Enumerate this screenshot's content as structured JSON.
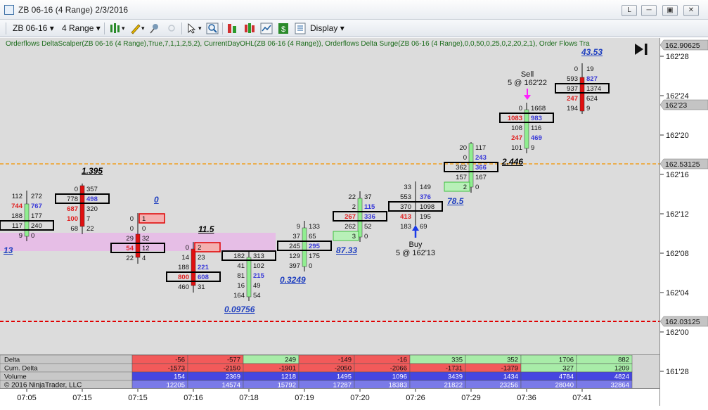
{
  "window": {
    "title": "ZB 06-16 (4 Range)  2/3/2016",
    "buttons": [
      "L",
      "─",
      "▣",
      "✕"
    ]
  },
  "toolbar": {
    "instrument": "ZB 06-16",
    "interval": "4 Range",
    "display_label": "Display"
  },
  "indicator_text": "Orderflows DeltaScalper(ZB 06-16 (4 Range),True,7,1,1,2,5,2), CurrentDayOHL(ZB 06-16 (4 Range)), Orderflows Delta Surge(ZB 06-16 (4 Range),0,0,50,0,25,0,2,20,2,1), Order Flows Tra",
  "price_axis": {
    "ticks": [
      "162'28",
      "162'24",
      "162'20",
      "162'16",
      "162'12",
      "162'08",
      "162'04",
      "162'00",
      "161'28"
    ],
    "markers": [
      {
        "label": "162.90625",
        "style": "gray"
      },
      {
        "label": "162'23",
        "style": "gray"
      },
      {
        "label": "162.53125",
        "style": "gray"
      },
      {
        "label": "162.03125",
        "style": "gray"
      }
    ]
  },
  "time_axis": [
    "07:05",
    "07:15",
    "07:15",
    "07:16",
    "07:18",
    "07:19",
    "07:20",
    "07:26",
    "07:29",
    "07:36",
    "07:41"
  ],
  "trades": {
    "sell_label": "Sell",
    "sell_detail": "5 @ 162'22",
    "buy_label": "Buy",
    "buy_detail": "5 @ 162'13"
  },
  "annotations": [
    {
      "text": "43.53",
      "color": "#1f3fbf"
    },
    {
      "text": "1.395",
      "color": "#000000"
    },
    {
      "text": "0",
      "color": "#1f3fbf"
    },
    {
      "text": "11.5",
      "color": "#000000"
    },
    {
      "text": "13",
      "color": "#1f3fbf"
    },
    {
      "text": "87.33",
      "color": "#1f3fbf"
    },
    {
      "text": "78.5",
      "color": "#1f3fbf"
    },
    {
      "text": "2.446",
      "color": "#000000"
    },
    {
      "text": "0.3249",
      "color": "#1f3fbf"
    },
    {
      "text": "0.09756",
      "color": "#1f3fbf"
    }
  ],
  "footprint": {
    "bars": [
      {
        "rows": [
          [
            "112",
            "272"
          ],
          [
            "744",
            "767"
          ],
          [
            "188",
            "177"
          ],
          [
            "117",
            "240"
          ],
          [
            "9",
            "0"
          ]
        ]
      },
      {
        "rows": [
          [
            "0",
            "357"
          ],
          [
            "778",
            "498"
          ],
          [
            "687",
            "320"
          ],
          [
            "100",
            "7"
          ],
          [
            "68",
            "22"
          ]
        ]
      },
      {
        "rows": [
          [
            "0",
            "1"
          ],
          [
            "0",
            "0"
          ],
          [
            "29",
            "32"
          ],
          [
            "54",
            "12"
          ],
          [
            "22",
            "4"
          ]
        ]
      },
      {
        "rows": [
          [
            "0",
            "2"
          ],
          [
            "14",
            "23"
          ],
          [
            "188",
            "221"
          ],
          [
            "800",
            "608"
          ],
          [
            "460",
            "31"
          ]
        ]
      },
      {
        "rows": [
          [
            "182",
            "313"
          ],
          [
            "41",
            "102"
          ],
          [
            "81",
            "215"
          ],
          [
            "16",
            "49"
          ],
          [
            "164",
            "54"
          ]
        ]
      },
      {
        "rows": [
          [
            "9",
            "133"
          ],
          [
            "37",
            "65"
          ],
          [
            "245",
            "295"
          ],
          [
            "129",
            "175"
          ],
          [
            "397",
            "0"
          ]
        ]
      },
      {
        "rows": [
          [
            "22",
            "37"
          ],
          [
            "2",
            "115"
          ],
          [
            "267",
            "336"
          ],
          [
            "262",
            "52"
          ],
          [
            "3",
            "0"
          ]
        ]
      },
      {
        "rows": [
          [
            "33",
            "149"
          ],
          [
            "553",
            "376"
          ],
          [
            "370",
            "1098"
          ],
          [
            "413",
            "195"
          ],
          [
            "183",
            "69"
          ]
        ]
      },
      {
        "rows": [
          [
            "20",
            "117"
          ],
          [
            "0",
            "243"
          ],
          [
            "362",
            "366"
          ],
          [
            "157",
            "167"
          ],
          [
            "2",
            "0"
          ]
        ]
      },
      {
        "rows": [
          [
            "0",
            "1668"
          ],
          [
            "1083",
            "983"
          ],
          [
            "108",
            "116"
          ],
          [
            "247",
            "469"
          ],
          [
            "101",
            "9"
          ]
        ]
      },
      {
        "rows": [
          [
            "0",
            "19"
          ],
          [
            "593",
            "827"
          ],
          [
            "937",
            "1374"
          ],
          [
            "247",
            "624"
          ],
          [
            "194",
            "9"
          ]
        ]
      }
    ]
  },
  "panel": {
    "labels": [
      "Delta",
      "Cum. Delta",
      "Volume",
      ""
    ],
    "watermark": "© 2016 NinjaTrader, LLC",
    "columns": [
      {
        "delta": "-56",
        "cum": "-1573",
        "vol": "154",
        "total": "12205"
      },
      {
        "delta": "-577",
        "cum": "-2150",
        "vol": "2369",
        "total": "14574"
      },
      {
        "delta": "249",
        "cum": "-1901",
        "vol": "1218",
        "total": "15792"
      },
      {
        "delta": "-149",
        "cum": "-2050",
        "vol": "1495",
        "total": "17287"
      },
      {
        "delta": "-16",
        "cum": "-2066",
        "vol": "1096",
        "total": "18383"
      },
      {
        "delta": "335",
        "cum": "-1731",
        "vol": "3439",
        "total": "21822"
      },
      {
        "delta": "352",
        "cum": "-1379",
        "vol": "1434",
        "total": "23256"
      },
      {
        "delta": "1706",
        "cum": "327",
        "vol": "4784",
        "total": "28040"
      },
      {
        "delta": "882",
        "cum": "1209",
        "vol": "4824",
        "total": "32864"
      }
    ]
  },
  "colors": {
    "buy": "#3a3ad8",
    "sell": "#e02020",
    "up_candle": "#90ee90",
    "down_candle": "#e01010",
    "open_line": "#f0a020",
    "low_line": "#e00000"
  }
}
